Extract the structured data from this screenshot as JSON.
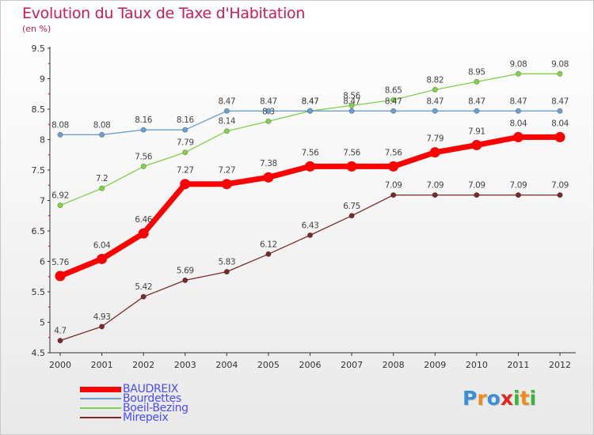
{
  "title": "Evolution du Taux de Taxe d'Habitation",
  "subtitle": "(en %)",
  "logo": {
    "letters": [
      "P",
      "r",
      "o",
      "x",
      "i",
      "t",
      "i"
    ],
    "colors": [
      "#3a8fd8",
      "#f08a1c",
      "#3a8fd8",
      "#e2261b",
      "#3ab53a",
      "#f08a1c",
      "#3ab53a"
    ]
  },
  "chart_data": {
    "type": "line",
    "x": [
      "2000",
      "2001",
      "2002",
      "2003",
      "2004",
      "2005",
      "2006",
      "2007",
      "2008",
      "2009",
      "2010",
      "2011",
      "2012"
    ],
    "yticks": [
      "4.5",
      "5",
      "5.5",
      "6",
      "6.5",
      "7",
      "7.5",
      "8",
      "8.5",
      "9",
      "9.5"
    ],
    "ylim": [
      4.5,
      9.5
    ],
    "grid": false,
    "legend_position": "bottom-left",
    "series": [
      {
        "name": "BAUDREIX",
        "color": "#ff0000",
        "values": [
          5.76,
          6.04,
          6.46,
          7.27,
          7.27,
          7.38,
          7.56,
          7.56,
          7.56,
          7.79,
          7.91,
          8.04,
          8.04
        ],
        "labels": [
          "5.76",
          "6.04",
          "6.46",
          "7.27",
          "7.27",
          "7.38",
          "7.56",
          "7.56",
          "7.56",
          "7.79",
          "7.91",
          "8.04",
          "8.04"
        ]
      },
      {
        "name": "Bourdettes",
        "color": "#6a9fd0",
        "values": [
          8.08,
          8.08,
          8.16,
          8.16,
          8.47,
          8.47,
          8.47,
          8.47,
          8.47,
          8.47,
          8.47,
          8.47,
          8.47
        ],
        "labels": [
          "8.08",
          "8.08",
          "8.16",
          "8.16",
          "8.47",
          "8.47",
          "8.47",
          "8.47",
          "8.47",
          "8.47",
          "8.47",
          "8.47",
          "8.47"
        ]
      },
      {
        "name": "Boeil-Bezing",
        "color": "#7fd04a",
        "values": [
          6.92,
          7.2,
          7.56,
          7.79,
          8.14,
          8.3,
          8.47,
          8.56,
          8.65,
          8.82,
          8.95,
          9.08,
          9.08
        ],
        "labels": [
          "6.92",
          "7.2",
          "7.56",
          "7.79",
          "8.14",
          "8.3",
          "8.47",
          "8.56",
          "8.65",
          "8.82",
          "8.95",
          "9.08",
          "9.08"
        ]
      },
      {
        "name": "Mirepeix",
        "color": "#7a2a2a",
        "values": [
          4.7,
          4.93,
          5.42,
          5.69,
          5.83,
          6.12,
          6.43,
          6.75,
          7.09,
          7.09,
          7.09,
          7.09,
          7.09
        ],
        "labels": [
          "4.7",
          "4.93",
          "5.42",
          "5.69",
          "5.83",
          "6.12",
          "6.43",
          "6.75",
          "7.09",
          "7.09",
          "7.09",
          "7.09",
          "7.09"
        ]
      }
    ]
  }
}
